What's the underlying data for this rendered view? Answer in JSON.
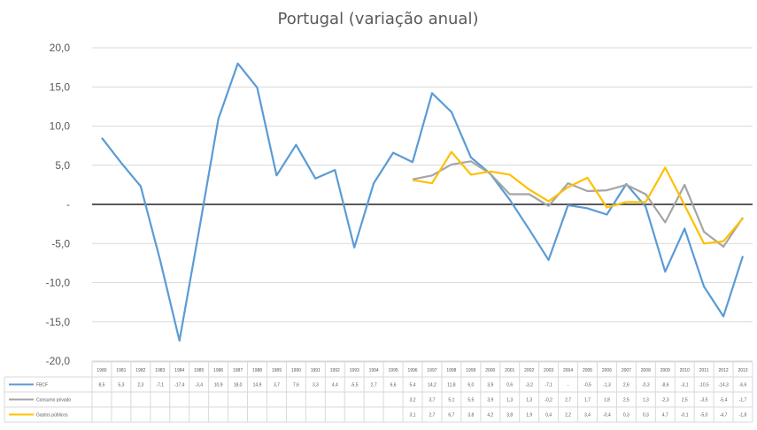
{
  "chart_data": {
    "type": "line",
    "title": "Portugal (variação anual)",
    "xlabel": "",
    "ylabel": "",
    "ylim": [
      -20,
      20
    ],
    "yticks": [
      "20,0",
      "15,0",
      "10,0",
      "5,0",
      "-",
      "-5,0",
      "-10,0",
      "-15,0",
      "-20,0"
    ],
    "grid": true,
    "legend": "data-table-bottom",
    "categories": [
      "1980",
      "1981",
      "1982",
      "1983",
      "1984",
      "1985",
      "1986",
      "1987",
      "1988",
      "1989",
      "1990",
      "1991",
      "1992",
      "1993",
      "1994",
      "1995",
      "1996",
      "1997",
      "1998",
      "1999",
      "2000",
      "2001",
      "2002",
      "2003",
      "2004",
      "2005",
      "2006",
      "2007",
      "2008",
      "2009",
      "2010",
      "2011",
      "2012",
      "2013"
    ],
    "series": [
      {
        "name": "FBCF",
        "color": "#5b9bd5",
        "values": [
          8.5,
          5.3,
          2.3,
          -7.1,
          -17.4,
          -3.4,
          10.9,
          18.0,
          14.9,
          3.7,
          7.6,
          3.3,
          4.4,
          -5.5,
          2.7,
          6.6,
          5.4,
          14.2,
          11.8,
          6.0,
          3.9,
          0.6,
          -3.2,
          -7.1,
          -0.1,
          -0.5,
          -1.3,
          2.6,
          -0.3,
          -8.6,
          -3.1,
          -10.5,
          -14.3,
          -6.6
        ],
        "labels": [
          "8,5",
          "5,3",
          "2,3",
          "-7,1",
          "-17,4",
          "-3,4",
          "10,9",
          "18,0",
          "14,9",
          "3,7",
          "7,6",
          "3,3",
          "4,4",
          "-5,5",
          "2,7",
          "6,6",
          "5,4",
          "14,2",
          "11,8",
          "6,0",
          "3,9",
          "0,6",
          "-3,2",
          "-7,1",
          "-",
          "-0,5",
          "-1,3",
          "2,6",
          "-0,3",
          "-8,6",
          "-3,1",
          "-10,5",
          "-14,3",
          "-6,6"
        ]
      },
      {
        "name": "Consumo privado",
        "color": "#a5a5a5",
        "values": [
          null,
          null,
          null,
          null,
          null,
          null,
          null,
          null,
          null,
          null,
          null,
          null,
          null,
          null,
          null,
          null,
          3.2,
          3.7,
          5.1,
          5.5,
          3.9,
          1.3,
          1.3,
          -0.2,
          2.7,
          1.7,
          1.8,
          2.5,
          1.3,
          -2.3,
          2.5,
          -3.5,
          -5.4,
          -1.7
        ],
        "labels": [
          "",
          "",
          "",
          "",
          "",
          "",
          "",
          "",
          "",
          "",
          "",
          "",
          "",
          "",
          "",
          "",
          "3,2",
          "3,7",
          "5,1",
          "5,5",
          "3,9",
          "1,3",
          "1,3",
          "-0,2",
          "2,7",
          "1,7",
          "1,8",
          "2,5",
          "1,3",
          "-2,3",
          "2,5",
          "-3,5",
          "-5,4",
          "-1,7"
        ]
      },
      {
        "name": "Gastos públicos",
        "color": "#ffc000",
        "values": [
          null,
          null,
          null,
          null,
          null,
          null,
          null,
          null,
          null,
          null,
          null,
          null,
          null,
          null,
          null,
          null,
          3.1,
          2.7,
          6.7,
          3.8,
          4.2,
          3.8,
          1.9,
          0.4,
          2.2,
          3.4,
          -0.4,
          0.3,
          0.3,
          4.7,
          -0.1,
          -5.0,
          -4.7,
          -1.8
        ],
        "labels": [
          "",
          "",
          "",
          "",
          "",
          "",
          "",
          "",
          "",
          "",
          "",
          "",
          "",
          "",
          "",
          "",
          "3,1",
          "2,7",
          "6,7",
          "3,8",
          "4,2",
          "3,8",
          "1,9",
          "0,4",
          "2,2",
          "3,4",
          "-0,4",
          "0,3",
          "0,3",
          "4,7",
          "-0,1",
          "-5,0",
          "-4,7",
          "-1,8"
        ]
      }
    ]
  }
}
